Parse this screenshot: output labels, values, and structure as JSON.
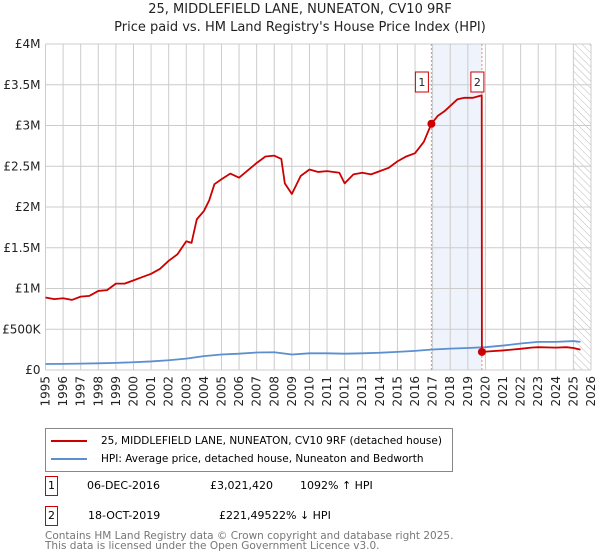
{
  "title": "25, MIDDLEFIELD LANE, NUNEATON, CV10 9RF",
  "subtitle": "Price paid vs. HM Land Registry's House Price Index (HPI)",
  "chart_data": {
    "type": "line",
    "title": "25, MIDDLEFIELD LANE, NUNEATON, CV10 9RF",
    "subtitle": "Price paid vs. HM Land Registry's House Price Index (HPI)",
    "xlim": [
      1995,
      2026
    ],
    "ylim": [
      0,
      4000000
    ],
    "yticks": [
      {
        "v": 0,
        "label": "£0"
      },
      {
        "v": 500000,
        "label": "£500K"
      },
      {
        "v": 1000000,
        "label": "£1M"
      },
      {
        "v": 1500000,
        "label": "£1.5M"
      },
      {
        "v": 2000000,
        "label": "£2M"
      },
      {
        "v": 2500000,
        "label": "£2.5M"
      },
      {
        "v": 3000000,
        "label": "£3M"
      },
      {
        "v": 3500000,
        "label": "£3.5M"
      },
      {
        "v": 4000000,
        "label": "£4M"
      }
    ],
    "xticks": [
      "1995",
      "1996",
      "1997",
      "1998",
      "1999",
      "2000",
      "2001",
      "2002",
      "2003",
      "2004",
      "2005",
      "2006",
      "2007",
      "2008",
      "2009",
      "2010",
      "2011",
      "2012",
      "2013",
      "2014",
      "2015",
      "2016",
      "2017",
      "2018",
      "2019",
      "2020",
      "2021",
      "2022",
      "2023",
      "2024",
      "2025",
      "2026"
    ],
    "grid": true,
    "legend_position": "below",
    "series": [
      {
        "name": "25, MIDDLEFIELD LANE, NUNEATON, CV10 9RF (detached house)",
        "color": "#cc0000",
        "points": [
          [
            1995,
            890000
          ],
          [
            1995.5,
            870000
          ],
          [
            1996,
            880000
          ],
          [
            1996.5,
            860000
          ],
          [
            1997,
            900000
          ],
          [
            1997.5,
            910000
          ],
          [
            1998,
            970000
          ],
          [
            1998.5,
            980000
          ],
          [
            1999,
            1060000
          ],
          [
            1999.5,
            1060000
          ],
          [
            2000,
            1100000
          ],
          [
            2000.5,
            1140000
          ],
          [
            2001,
            1180000
          ],
          [
            2001.5,
            1240000
          ],
          [
            2002,
            1340000
          ],
          [
            2002.5,
            1420000
          ],
          [
            2003,
            1580000
          ],
          [
            2003.3,
            1560000
          ],
          [
            2003.6,
            1850000
          ],
          [
            2004,
            1950000
          ],
          [
            2004.3,
            2080000
          ],
          [
            2004.6,
            2280000
          ],
          [
            2005,
            2340000
          ],
          [
            2005.5,
            2410000
          ],
          [
            2006,
            2360000
          ],
          [
            2006.5,
            2450000
          ],
          [
            2007,
            2540000
          ],
          [
            2007.5,
            2620000
          ],
          [
            2008,
            2630000
          ],
          [
            2008.4,
            2590000
          ],
          [
            2008.6,
            2290000
          ],
          [
            2009,
            2160000
          ],
          [
            2009.5,
            2380000
          ],
          [
            2010,
            2460000
          ],
          [
            2010.5,
            2430000
          ],
          [
            2011,
            2440000
          ],
          [
            2011.7,
            2420000
          ],
          [
            2012,
            2290000
          ],
          [
            2012.5,
            2400000
          ],
          [
            2013,
            2420000
          ],
          [
            2013.5,
            2400000
          ],
          [
            2014,
            2440000
          ],
          [
            2014.5,
            2480000
          ],
          [
            2015,
            2560000
          ],
          [
            2015.5,
            2620000
          ],
          [
            2016,
            2660000
          ],
          [
            2016.5,
            2800000
          ],
          [
            2016.93,
            3021420
          ],
          [
            2017.3,
            3120000
          ],
          [
            2017.7,
            3180000
          ],
          [
            2018,
            3240000
          ],
          [
            2018.4,
            3320000
          ],
          [
            2018.8,
            3340000
          ],
          [
            2019.3,
            3340000
          ],
          [
            2019.79,
            3370000
          ],
          [
            2019.8,
            221495
          ],
          [
            2020.3,
            230000
          ],
          [
            2021,
            240000
          ],
          [
            2021.5,
            250000
          ],
          [
            2022,
            260000
          ],
          [
            2022.6,
            275000
          ],
          [
            2023,
            280000
          ],
          [
            2024,
            275000
          ],
          [
            2024.6,
            280000
          ],
          [
            2025,
            270000
          ],
          [
            2025.4,
            250000
          ]
        ]
      },
      {
        "name": "HPI: Average price, detached house, Nuneaton and Bedworth",
        "color": "#5b8fd0",
        "points": [
          [
            1995,
            74000
          ],
          [
            1996,
            75000
          ],
          [
            1997,
            78000
          ],
          [
            1998,
            82000
          ],
          [
            1999,
            87000
          ],
          [
            2000,
            95000
          ],
          [
            2001,
            105000
          ],
          [
            2002,
            120000
          ],
          [
            2003,
            140000
          ],
          [
            2004,
            170000
          ],
          [
            2005,
            190000
          ],
          [
            2006,
            200000
          ],
          [
            2007,
            215000
          ],
          [
            2008,
            218000
          ],
          [
            2009,
            190000
          ],
          [
            2010,
            205000
          ],
          [
            2011,
            205000
          ],
          [
            2012,
            200000
          ],
          [
            2013,
            205000
          ],
          [
            2014,
            212000
          ],
          [
            2015,
            222000
          ],
          [
            2016,
            235000
          ],
          [
            2017,
            252000
          ],
          [
            2018,
            262000
          ],
          [
            2019,
            270000
          ],
          [
            2020,
            280000
          ],
          [
            2021,
            300000
          ],
          [
            2022,
            325000
          ],
          [
            2023,
            345000
          ],
          [
            2024,
            345000
          ],
          [
            2025,
            355000
          ],
          [
            2025.4,
            345000
          ]
        ]
      }
    ],
    "annotations": [
      {
        "label": "1",
        "x": 2016.93,
        "y": 3021420
      },
      {
        "label": "2",
        "x": 2019.8,
        "y": 221495
      }
    ],
    "shaded_range": [
      2016.93,
      2019.8
    ],
    "hatched_after": 2025.0
  },
  "legend": {
    "items": [
      {
        "label": "25, MIDDLEFIELD LANE, NUNEATON, CV10 9RF (detached house)",
        "color": "#cc0000"
      },
      {
        "label": "HPI: Average price, detached house, Nuneaton and Bedworth",
        "color": "#5b8fd0"
      }
    ]
  },
  "transactions": [
    {
      "num": "1",
      "date": "06-DEC-2016",
      "price": "£3,021,420",
      "hpi": "1092% ↑ HPI"
    },
    {
      "num": "2",
      "date": "18-OCT-2019",
      "price": "£221,495",
      "hpi": "22% ↓ HPI"
    }
  ],
  "footer": {
    "line1": "Contains HM Land Registry data © Crown copyright and database right 2025.",
    "line2": "This data is licensed under the Open Government Licence v3.0."
  }
}
